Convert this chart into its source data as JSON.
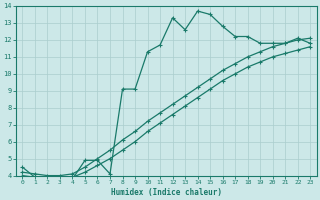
{
  "xlabel": "Humidex (Indice chaleur)",
  "xlim": [
    -0.5,
    23.5
  ],
  "ylim": [
    4,
    14
  ],
  "xticks": [
    0,
    1,
    2,
    3,
    4,
    5,
    6,
    7,
    8,
    9,
    10,
    11,
    12,
    13,
    14,
    15,
    16,
    17,
    18,
    19,
    20,
    21,
    22,
    23
  ],
  "yticks": [
    4,
    5,
    6,
    7,
    8,
    9,
    10,
    11,
    12,
    13,
    14
  ],
  "bg_color": "#cce8e8",
  "grid_color": "#aacece",
  "line_color": "#1a7a6a",
  "series1_x": [
    0,
    1,
    2,
    3,
    4,
    5,
    6,
    7,
    8,
    9,
    10,
    11,
    12,
    13,
    14,
    15,
    16,
    17,
    18,
    19,
    20,
    21,
    22,
    23
  ],
  "series1_y": [
    4.5,
    3.9,
    3.7,
    3.7,
    3.8,
    4.9,
    4.9,
    4.1,
    9.1,
    9.1,
    11.3,
    11.7,
    13.3,
    12.6,
    13.7,
    13.5,
    12.8,
    12.2,
    12.2,
    11.8,
    11.8,
    11.8,
    12.1,
    11.8
  ],
  "series2_x": [
    0,
    1,
    2,
    3,
    4,
    5,
    6,
    7,
    8,
    9,
    10,
    11,
    12,
    13,
    14,
    15,
    16,
    17,
    18,
    19,
    20,
    21,
    22,
    23
  ],
  "series2_y": [
    4.2,
    4.1,
    4.0,
    4.0,
    4.1,
    4.5,
    5.0,
    5.5,
    6.1,
    6.6,
    7.2,
    7.7,
    8.2,
    8.7,
    9.2,
    9.7,
    10.2,
    10.6,
    11.0,
    11.3,
    11.6,
    11.8,
    12.0,
    12.1
  ],
  "series3_x": [
    0,
    1,
    2,
    3,
    4,
    5,
    6,
    7,
    8,
    9,
    10,
    11,
    12,
    13,
    14,
    15,
    16,
    17,
    18,
    19,
    20,
    21,
    22,
    23
  ],
  "series3_y": [
    4.0,
    3.9,
    3.8,
    3.8,
    3.9,
    4.2,
    4.6,
    5.0,
    5.5,
    6.0,
    6.6,
    7.1,
    7.6,
    8.1,
    8.6,
    9.1,
    9.6,
    10.0,
    10.4,
    10.7,
    11.0,
    11.2,
    11.4,
    11.6
  ]
}
